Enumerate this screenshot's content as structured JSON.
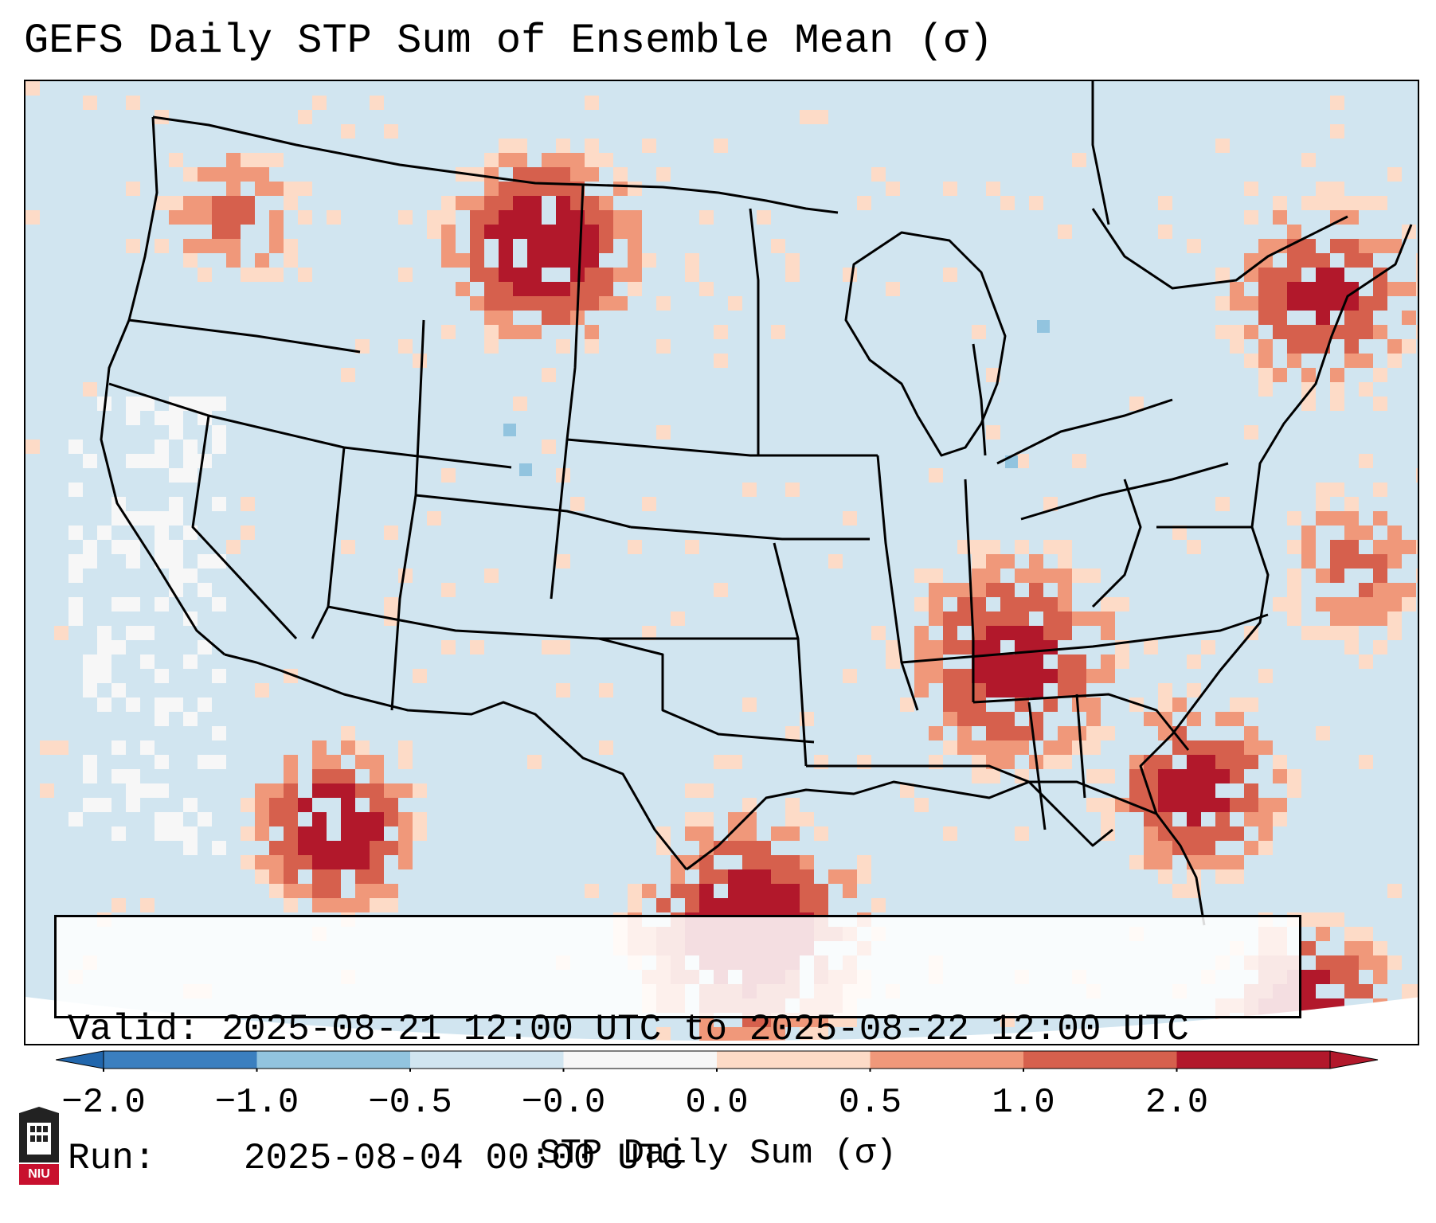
{
  "title": "GEFS Daily STP Sum of Ensemble Mean (σ)",
  "info": {
    "valid_label": "Valid:",
    "valid_value": "2025-08-21 12:00 UTC to 2025-08-22 12:00 UTC",
    "run_label": "Run:",
    "run_value": "2025-08-04 00:00 UTC"
  },
  "colorbar": {
    "label": "STP Daily Sum (σ)",
    "ticks": [
      "−2.0",
      "−1.0",
      "−0.5",
      "−0.0",
      "0.0",
      "0.5",
      "1.0",
      "2.0"
    ],
    "colors": [
      "#3b7fbf",
      "#92c4df",
      "#d1e5f0",
      "#f7f7f7",
      "#fddbc7",
      "#f0987a",
      "#d6604d",
      "#b2182b"
    ]
  },
  "map": {
    "background_color": "#d1e5f0",
    "outline_color": "#000000",
    "hotspots": [
      {
        "region": "Montana / Wyoming / Dakotas",
        "level": "high"
      },
      {
        "region": "Southeast US (Alabama, Georgia, Carolinas)",
        "level": "moderate"
      },
      {
        "region": "Texas Gulf Coast / Gulf of Mexico",
        "level": "high"
      },
      {
        "region": "Northwest Mexico / Gulf of California",
        "level": "high"
      },
      {
        "region": "Florida / Western Atlantic",
        "level": "moderate"
      },
      {
        "region": "New England / Quebec",
        "level": "moderate"
      },
      {
        "region": "Caribbean / Cuba",
        "level": "high"
      }
    ]
  },
  "logo": {
    "text": "NIU"
  }
}
